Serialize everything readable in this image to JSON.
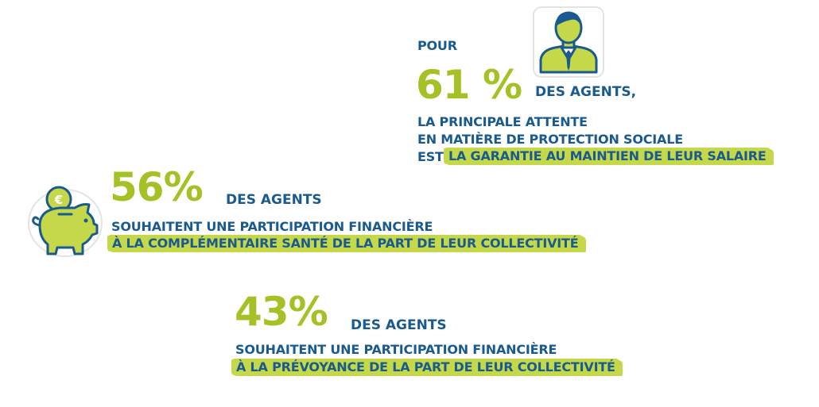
{
  "stat1": {
    "pre": "POUR",
    "percent": "61 %",
    "suffix": "DES AGENTS,",
    "line1": "LA PRINCIPALE ATTENTE",
    "line2": "EN MATIÈRE DE PROTECTION SOCIALE",
    "line3_pre": "EST",
    "highlight": "LA GARANTIE AU MAINTIEN DE LEUR SALAIRE",
    "icon": "businessman-icon"
  },
  "stat2": {
    "percent": "56%",
    "suffix": "DES AGENTS",
    "line1": "SOUHAITENT UNE PARTICIPATION FINANCIÈRE",
    "highlight": "À LA COMPLÉMENTAIRE SANTÉ DE LA PART DE LEUR COLLECTIVITÉ",
    "icon": "piggy-bank-euro-icon",
    "icon_text": "€"
  },
  "stat3": {
    "percent": "43%",
    "suffix": "DES AGENTS",
    "line1": "SOUHAITENT UNE PARTICIPATION FINANCIÈRE",
    "highlight": "À LA PRÉVOYANCE DE LA PART DE LEUR COLLECTIVITÉ"
  },
  "colors": {
    "green": "#a4c125",
    "blue": "#1a5a8f",
    "highlight": "#c4d84a"
  }
}
